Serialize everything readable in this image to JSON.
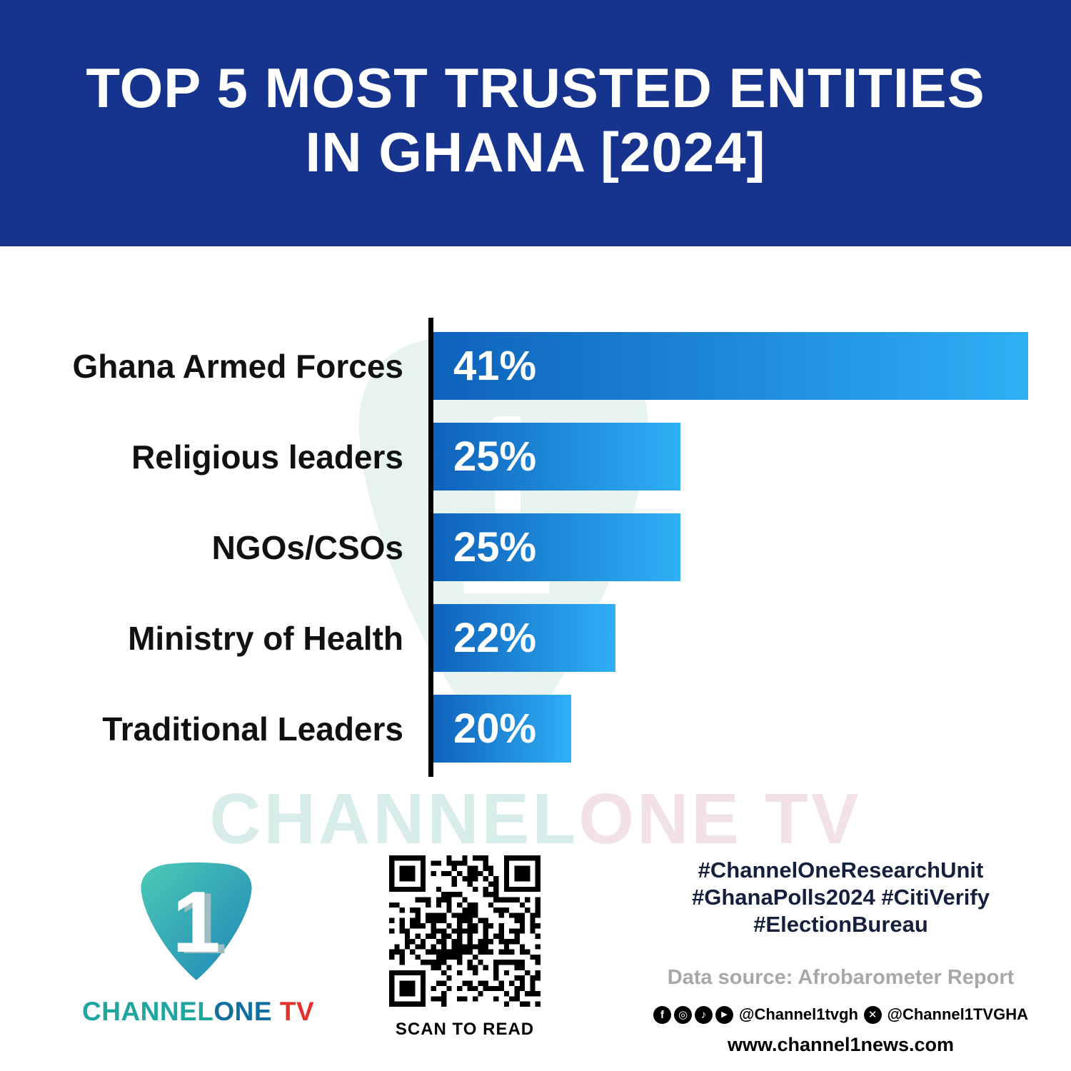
{
  "header": {
    "title_line1": "TOP 5 MOST TRUSTED ENTITIES",
    "title_line2": "IN GHANA [2024]"
  },
  "chart_data": {
    "type": "bar",
    "orientation": "horizontal",
    "title": "TOP 5 MOST TRUSTED ENTITIES IN GHANA [2024]",
    "categories": [
      "Ghana Armed Forces",
      "Religious leaders",
      "NGOs/CSOs",
      "Ministry of Health",
      "Traditional Leaders"
    ],
    "values": [
      41,
      25,
      25,
      22,
      20
    ],
    "value_labels": [
      "41%",
      "25%",
      "25%",
      "22%",
      "20%"
    ],
    "bar_display_pct": [
      100,
      41.5,
      41.5,
      30.6,
      23.2
    ],
    "bar_gradient": [
      "#0E62BB",
      "#2FB0F5"
    ],
    "xlabel": "",
    "ylabel": "",
    "grid": false,
    "legend": false,
    "value_label_position": "inside-left",
    "axis": "single left vertical black line"
  },
  "watermark": {
    "part1": "CHANNEL",
    "part2": "ONE TV"
  },
  "footer": {
    "logo": {
      "part1": "CHANNEL",
      "part2": "ONE",
      "part3": " TV",
      "numeral": "1"
    },
    "qr_caption": "SCAN TO READ",
    "hashtags_line1": "#ChannelOneResearchUnit",
    "hashtags_line2": "#GhanaPolls2024 #CitiVerify",
    "hashtags_line3": "#ElectionBureau",
    "data_source": "Data source: Afrobarometer Report",
    "social_handle1": "@Channel1tvgh",
    "social_handle2": "@Channel1TVGHA",
    "website": "www.channel1news.com"
  },
  "icons": {
    "facebook": "f",
    "instagram": "◎",
    "tiktok": "♪",
    "youtube": "▶",
    "x": "✕"
  },
  "colors": {
    "header-bg": "#16348E",
    "bar-start": "#0E62BB",
    "bar-end": "#2FB0F5",
    "ink": "#111111",
    "hashtag-ink": "#15203C",
    "source-gray": "#A8A8A8",
    "brand-teal": "#1FA79F",
    "brand-blue": "#0F6F9E",
    "brand-red": "#E4312B",
    "watermark-teal": "#D8ECEA",
    "watermark-pink": "#F2E2E5",
    "watermark-shield": "#E7F3F1"
  }
}
